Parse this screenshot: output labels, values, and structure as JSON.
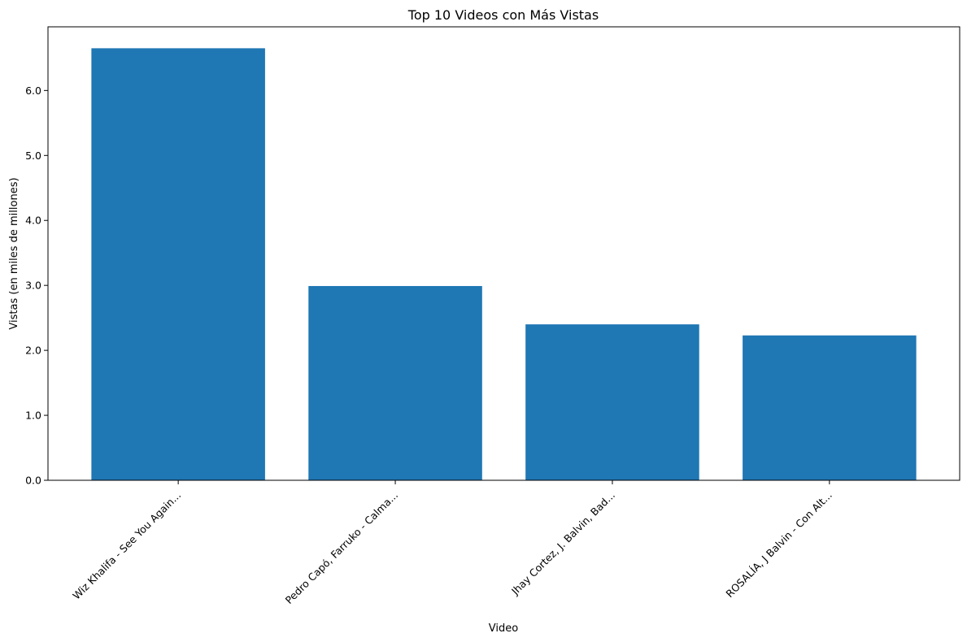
{
  "chart_data": {
    "type": "bar",
    "title": "Top 10 Videos con Más Vistas",
    "xlabel": "Video",
    "ylabel": "Vistas (en miles de millones)",
    "categories": [
      "Wiz Khalifa - See You Again...",
      "Pedro Capó, Farruko - Calma...",
      "Jhay Cortez, J. Balvin, Bad...",
      "ROSALÍA, J Balvin - Con Alt..."
    ],
    "values": [
      6.65,
      2.99,
      2.4,
      2.23
    ],
    "yticks": [
      "0.0",
      "1.0",
      "2.0",
      "3.0",
      "4.0",
      "5.0",
      "6.0"
    ],
    "ylim": [
      0,
      6.98
    ],
    "grid": false,
    "bar_color": "#1f77b4"
  }
}
